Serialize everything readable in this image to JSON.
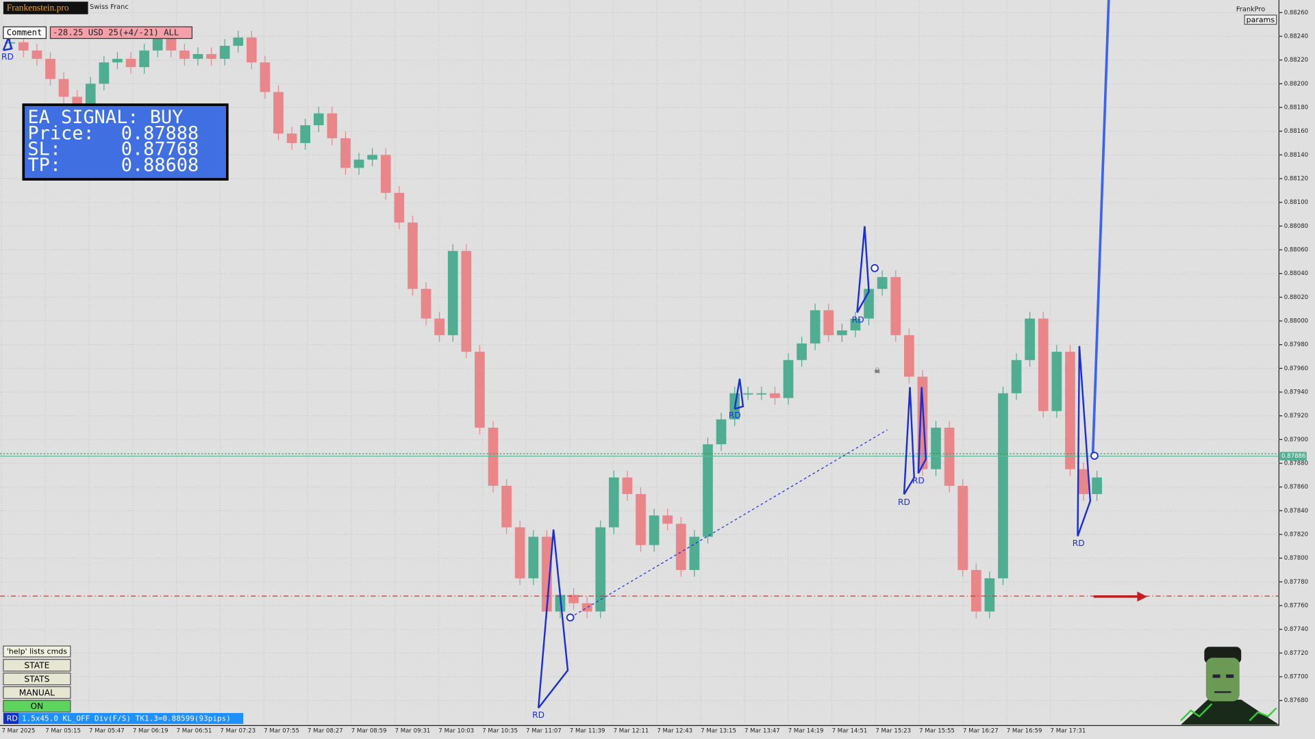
{
  "header": {
    "brand": "Frankenstein.pro",
    "symbol": "Swiss Franc",
    "comment_button": "Comment",
    "account_status": "-28.25 USD 25(+4/-21) ALL",
    "user": "FrankPro",
    "params_button": "params"
  },
  "signal": {
    "title": "EA SIGNAL: BUY",
    "lines": [
      {
        "label": "Price:",
        "value": "0.87888"
      },
      {
        "label": "SL:",
        "value": "0.87768"
      },
      {
        "label": "TP:",
        "value": "0.88608"
      }
    ]
  },
  "chart": {
    "price_ticks": [
      {
        "value": 0.8826,
        "label": "0.88260"
      },
      {
        "value": 0.8824,
        "label": "0.88240"
      },
      {
        "value": 0.8822,
        "label": "0.88220"
      },
      {
        "value": 0.882,
        "label": "0.88200"
      },
      {
        "value": 0.8818,
        "label": "0.88180"
      },
      {
        "value": 0.8816,
        "label": "0.88160"
      },
      {
        "value": 0.8814,
        "label": "0.88140"
      },
      {
        "value": 0.8812,
        "label": "0.88120"
      },
      {
        "value": 0.881,
        "label": "0.88100"
      },
      {
        "value": 0.8808,
        "label": "0.88080"
      },
      {
        "value": 0.8806,
        "label": "0.88060"
      },
      {
        "value": 0.8804,
        "label": "0.88040"
      },
      {
        "value": 0.8802,
        "label": "0.88020"
      },
      {
        "value": 0.88,
        "label": "0.88000"
      },
      {
        "value": 0.8798,
        "label": "0.87980"
      },
      {
        "value": 0.8796,
        "label": "0.87960"
      },
      {
        "value": 0.8794,
        "label": "0.87940"
      },
      {
        "value": 0.8792,
        "label": "0.87920"
      },
      {
        "value": 0.879,
        "label": "0.87900"
      },
      {
        "value": 0.8788,
        "label": "0.87880"
      },
      {
        "value": 0.8786,
        "label": "0.87860"
      },
      {
        "value": 0.8784,
        "label": "0.87840"
      },
      {
        "value": 0.8782,
        "label": "0.87820"
      },
      {
        "value": 0.878,
        "label": "0.87800"
      },
      {
        "value": 0.8778,
        "label": "0.87780"
      },
      {
        "value": 0.8776,
        "label": "0.87760"
      },
      {
        "value": 0.8774,
        "label": "0.87740"
      },
      {
        "value": 0.8772,
        "label": "0.87720"
      },
      {
        "value": 0.877,
        "label": "0.87700"
      },
      {
        "value": 0.8768,
        "label": "0.87680"
      }
    ],
    "time_labels": [
      "7 Mar 2025",
      "7 Mar 05:15",
      "7 Mar 05:47",
      "7 Mar 06:19",
      "7 Mar 06:51",
      "7 Mar 07:23",
      "7 Mar 07:55",
      "7 Mar 08:27",
      "7 Mar 08:59",
      "7 Mar 09:31",
      "7 Mar 10:03",
      "7 Mar 10:35",
      "7 Mar 11:07",
      "7 Mar 11:39",
      "7 Mar 12:11",
      "7 Mar 12:43",
      "7 Mar 13:15",
      "7 Mar 13:47",
      "7 Mar 14:19",
      "7 Mar 14:51",
      "7 Mar 15:23",
      "7 Mar 15:55",
      "7 Mar 16:27",
      "7 Mar 16:59",
      "7 Mar 17:31"
    ],
    "current_price_label": "0.87886",
    "price_trace": [
      0.88235,
      0.88228,
      0.88221,
      0.88204,
      0.88189,
      0.88182,
      0.882,
      0.88218,
      0.88221,
      0.88214,
      0.88228,
      0.88239,
      0.88228,
      0.88221,
      0.88225,
      0.88221,
      0.88232,
      0.88239,
      0.88218,
      0.88193,
      0.88158,
      0.8815,
      0.88165,
      0.88175,
      0.88154,
      0.88129,
      0.88136,
      0.8814,
      0.88108,
      0.88083,
      0.88027,
      0.88002,
      0.87988,
      0.88059,
      0.87974,
      0.8791,
      0.87861,
      0.87826,
      0.87783,
      0.87818,
      0.87755,
      0.87769,
      0.87762,
      0.87755,
      0.87826,
      0.87868,
      0.87854,
      0.87811,
      0.87836,
      0.87829,
      0.8779,
      0.87818,
      0.87896,
      0.87917,
      0.87939,
      0.87939,
      0.87939,
      0.87935,
      0.87967,
      0.87981,
      0.88009,
      0.87988,
      0.87992,
      0.88002,
      0.88027,
      0.88037,
      0.87988,
      0.87953,
      0.87875,
      0.8791,
      0.87861,
      0.8779,
      0.87755,
      0.87783,
      0.87939,
      0.87967,
      0.88002,
      0.87924,
      0.87974,
      0.87875,
      0.87854,
      0.87868
    ],
    "pattern_labels": [
      "RD",
      "RD",
      "RD",
      "RD",
      "RD",
      "RD",
      "RD"
    ]
  },
  "controls": {
    "help": "'help' lists cmds",
    "buttons": [
      "STATE",
      "STATS",
      "MANUAL",
      "ON"
    ]
  },
  "status": {
    "tag": "RD",
    "text": "1.5x45.0 KL_OFF Div(F/S) TK1.3=0.88599(93pips)"
  }
}
